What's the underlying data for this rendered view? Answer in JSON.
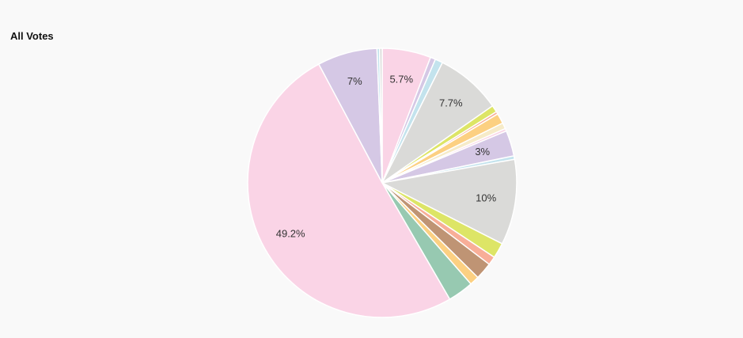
{
  "chart_data": {
    "type": "pie",
    "title": "All Votes",
    "slices": [
      {
        "value": 5.7,
        "color": "#fad4e6",
        "label": "5.7%"
      },
      {
        "value": 0.6,
        "color": "#d5c8e5",
        "label": ""
      },
      {
        "value": 0.9,
        "color": "#c3e3ed",
        "label": ""
      },
      {
        "value": 7.7,
        "color": "#dadad8",
        "label": "7.7%"
      },
      {
        "value": 0.8,
        "color": "#dde566",
        "label": ""
      },
      {
        "value": 0.3,
        "color": "#f8ae98",
        "label": ""
      },
      {
        "value": 1.2,
        "color": "#fcd082",
        "label": ""
      },
      {
        "value": 0.7,
        "color": "#f6ebc9",
        "label": ""
      },
      {
        "value": 0.3,
        "color": "#fad4e6",
        "label": ""
      },
      {
        "value": 3.0,
        "color": "#d5c8e5",
        "label": "3%"
      },
      {
        "value": 0.4,
        "color": "#c3e3ed",
        "label": ""
      },
      {
        "value": 10.0,
        "color": "#dadad8",
        "label": "10%"
      },
      {
        "value": 1.8,
        "color": "#dde566",
        "label": ""
      },
      {
        "value": 1.0,
        "color": "#f8ae98",
        "label": ""
      },
      {
        "value": 2.0,
        "color": "#bf9474",
        "label": ""
      },
      {
        "value": 1.1,
        "color": "#fcd082",
        "label": ""
      },
      {
        "value": 3.0,
        "color": "#97c9b1",
        "label": ""
      },
      {
        "value": 49.2,
        "color": "#fad4e6",
        "label": "49.2%"
      },
      {
        "value": 7.0,
        "color": "#d5c8e5",
        "label": "7%"
      },
      {
        "value": 0.3,
        "color": "#c3e3ed",
        "label": ""
      },
      {
        "value": 0.3,
        "color": "#dadad8",
        "label": ""
      }
    ]
  }
}
